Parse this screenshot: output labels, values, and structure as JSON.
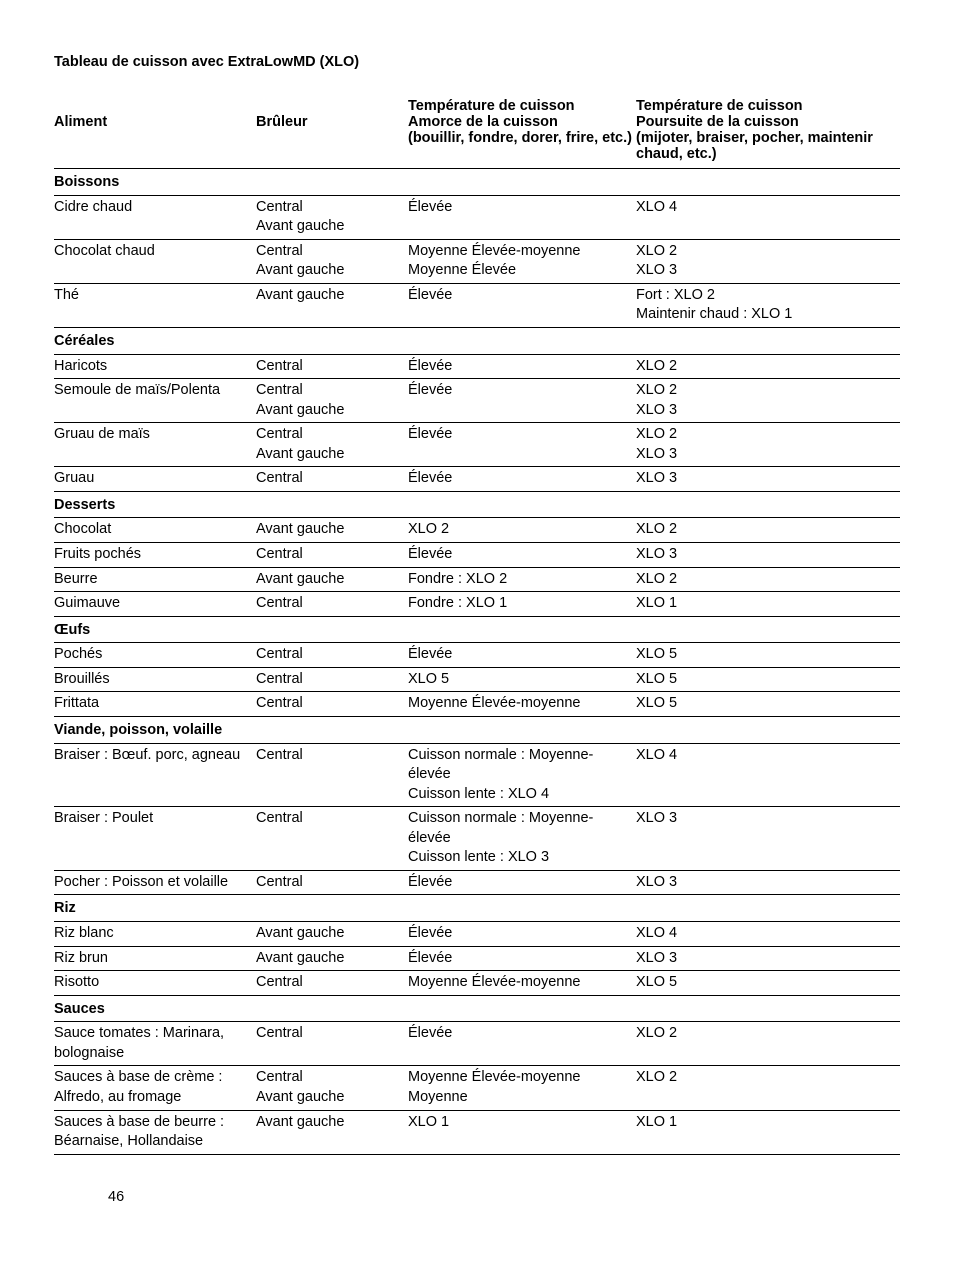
{
  "title": "Tableau de cuisson avec ExtraLowMD (XLO)",
  "pageNumber": "46",
  "headers": {
    "c1": "Aliment",
    "c2": "Brûleur",
    "c3a": "Température de cuisson",
    "c3b": "Amorce de la cuisson",
    "c3c": "(bouillir, fondre, dorer, frire, etc.)",
    "c4a": "Température de cuisson",
    "c4b": "Poursuite de la cuisson",
    "c4c": "(mijoter, braiser, pocher, maintenir chaud, etc.)"
  },
  "sections": {
    "boissons": "Boissons",
    "cereales": "Céréales",
    "desserts": "Desserts",
    "oeufs": "Œufs",
    "viande": "Viande, poisson, volaille",
    "riz": "Riz",
    "sauces": "Sauces"
  },
  "rows": {
    "cidre": {
      "a": "Cidre chaud",
      "b1": "Central",
      "b2": "Avant gauche",
      "c": "Élevée",
      "d": "XLO 4"
    },
    "chocchaud": {
      "a": "Chocolat chaud",
      "b1": "Central",
      "b2": "Avant gauche",
      "c1": "Moyenne Élevée-moyenne",
      "c2": "Moyenne Élevée",
      "d1": "XLO 2",
      "d2": "XLO 3"
    },
    "the": {
      "a": "Thé",
      "b": "Avant gauche",
      "c": "Élevée",
      "d1": "Fort : XLO 2",
      "d2": "Maintenir chaud : XLO 1"
    },
    "haricots": {
      "a": "Haricots",
      "b": "Central",
      "c": "Élevée",
      "d": "XLO 2"
    },
    "semoule": {
      "a": "Semoule de maïs/Polenta",
      "b1": "Central",
      "b2": "Avant gauche",
      "c": "Élevée",
      "d1": "XLO 2",
      "d2": "XLO 3"
    },
    "gruaumais": {
      "a": "Gruau de maïs",
      "b1": "Central",
      "b2": "Avant gauche",
      "c": "Élevée",
      "d1": "XLO 2",
      "d2": "XLO 3"
    },
    "gruau": {
      "a": "Gruau",
      "b": "Central",
      "c": "Élevée",
      "d": "XLO 3"
    },
    "chocolat": {
      "a": "Chocolat",
      "b": "Avant gauche",
      "c": "XLO 2",
      "d": "XLO 2"
    },
    "fruits": {
      "a": "Fruits pochés",
      "b": "Central",
      "c": "Élevée",
      "d": "XLO 3"
    },
    "beurre": {
      "a": "Beurre",
      "b": "Avant gauche",
      "c": "Fondre : XLO 2",
      "d": "XLO 2"
    },
    "guimauve": {
      "a": "Guimauve",
      "b": "Central",
      "c": "Fondre : XLO 1",
      "d": "XLO 1"
    },
    "poches": {
      "a": "Pochés",
      "b": "Central",
      "c": "Élevée",
      "d": "XLO 5"
    },
    "brouilles": {
      "a": "Brouillés",
      "b": "Central",
      "c": "XLO 5",
      "d": "XLO 5"
    },
    "frittata": {
      "a": "Frittata",
      "b": "Central",
      "c": "Moyenne Élevée-moyenne",
      "d": "XLO 5"
    },
    "braiserboeuf": {
      "a": "Braiser : Bœuf. porc, agneau",
      "b": "Central",
      "c1": "Cuisson normale : Moyenne-élevée",
      "c2": "Cuisson lente : XLO 4",
      "d": "XLO 4"
    },
    "braiserpoulet": {
      "a": "Braiser : Poulet",
      "b": "Central",
      "c1": "Cuisson normale : Moyenne-élevée",
      "c2": "Cuisson lente : XLO 3",
      "d": "XLO 3"
    },
    "pocher": {
      "a": "Pocher : Poisson et volaille",
      "b": "Central",
      "c": "Élevée",
      "d": "XLO 3"
    },
    "rizblanc": {
      "a": "Riz blanc",
      "b": "Avant gauche",
      "c": "Élevée",
      "d": "XLO 4"
    },
    "rizbrun": {
      "a": "Riz brun",
      "b": "Avant gauche",
      "c": "Élevée",
      "d": "XLO 3"
    },
    "risotto": {
      "a": "Risotto",
      "b": "Central",
      "c": "Moyenne Élevée-moyenne",
      "d": "XLO 5"
    },
    "saucetom": {
      "a": "Sauce tomates : Marinara, bolognaise",
      "b": "Central",
      "c": "Élevée",
      "d": "XLO 2"
    },
    "saucecreme": {
      "a": "Sauces à base de crème : Alfredo, au fromage",
      "b1": "Central",
      "b2": "Avant gauche",
      "c1": "Moyenne Élevée-moyenne",
      "c2": "Moyenne",
      "d": "XLO 2"
    },
    "saucebeurre": {
      "a": "Sauces à base de beurre : Béarnaise, Hol­landaise",
      "b": "Avant gauche",
      "c": "XLO 1",
      "d": "XLO 1"
    }
  }
}
